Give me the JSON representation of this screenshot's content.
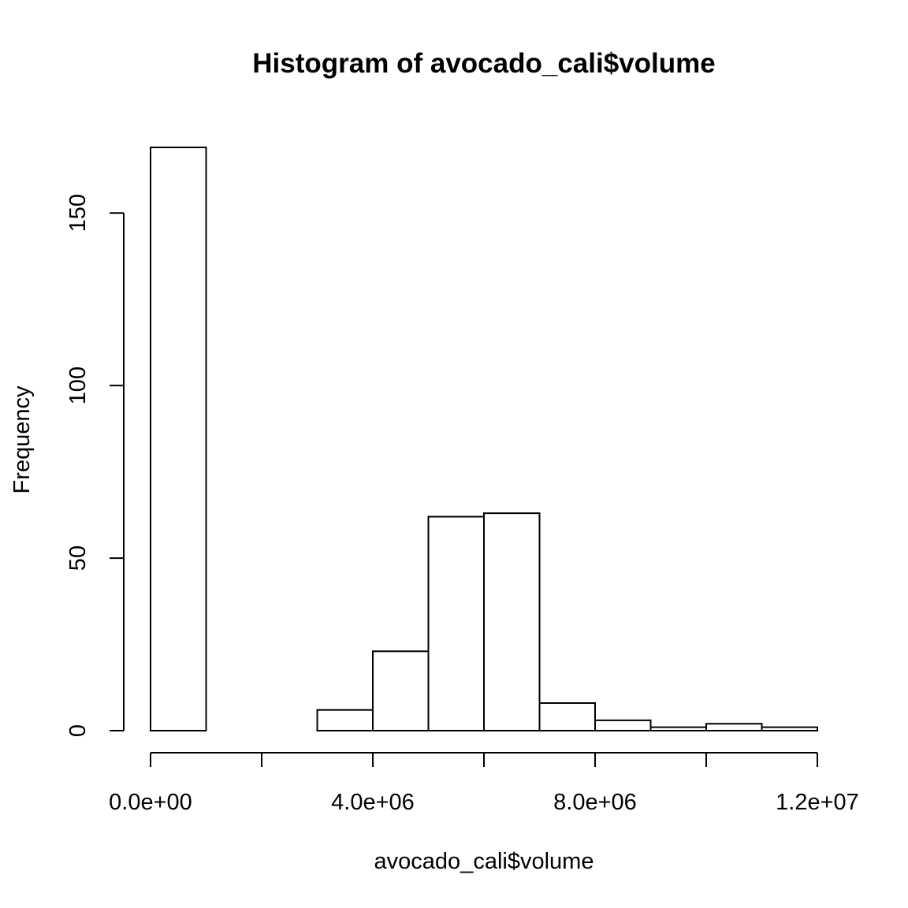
{
  "chart_data": {
    "type": "bar",
    "title": "Histogram of avocado_cali$volume",
    "xlabel": "avocado_cali$volume",
    "ylabel": "Frequency",
    "bin_edges": [
      0,
      1000000,
      2000000,
      3000000,
      4000000,
      5000000,
      6000000,
      7000000,
      8000000,
      9000000,
      10000000,
      11000000,
      12000000
    ],
    "values": [
      169,
      0,
      0,
      6,
      23,
      62,
      63,
      8,
      3,
      1,
      2,
      1
    ],
    "xlim": [
      0,
      12000000
    ],
    "ylim": [
      0,
      169
    ],
    "x_ticks": [
      {
        "value": 0,
        "label": "0.0e+00"
      },
      {
        "value": 2000000,
        "label": ""
      },
      {
        "value": 4000000,
        "label": "4.0e+06"
      },
      {
        "value": 6000000,
        "label": ""
      },
      {
        "value": 8000000,
        "label": "8.0e+06"
      },
      {
        "value": 10000000,
        "label": ""
      },
      {
        "value": 12000000,
        "label": "1.2e+07"
      }
    ],
    "y_ticks": [
      {
        "value": 0,
        "label": "0"
      },
      {
        "value": 50,
        "label": "50"
      },
      {
        "value": 100,
        "label": "100"
      },
      {
        "value": 150,
        "label": "150"
      }
    ],
    "grid": false,
    "legend": "none"
  }
}
